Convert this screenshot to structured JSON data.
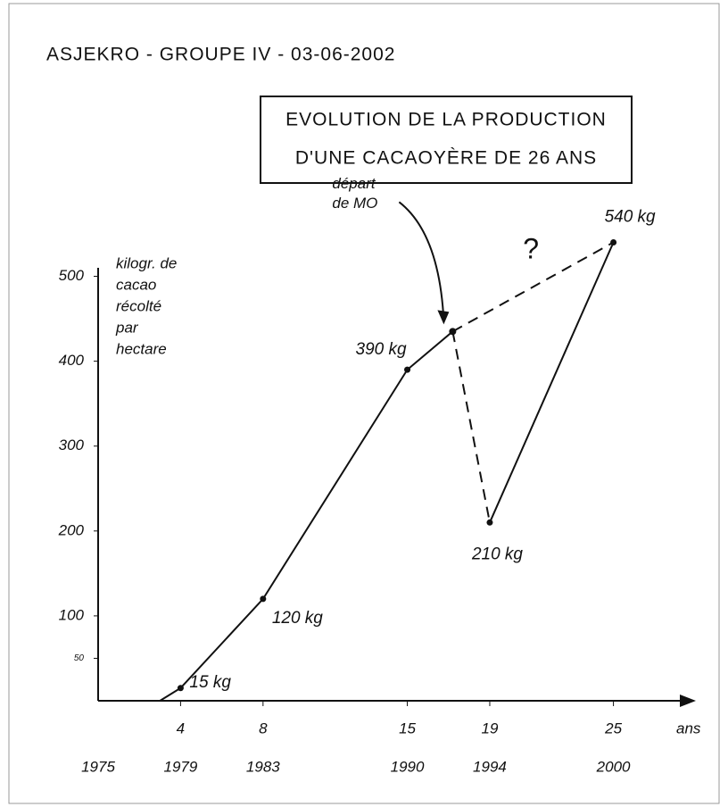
{
  "header": "ASJEKRO - GROUPE IV - 03-06-2002",
  "chart_data": {
    "type": "line",
    "title": [
      "EVOLUTION DE LA PRODUCTION",
      "D'UNE CACAOYÈRE DE 26 ANS"
    ],
    "y_label": [
      "kilogr. de",
      "cacao",
      "récolté",
      "par",
      "hectare"
    ],
    "x_label": "ans",
    "color": "#111",
    "xlim": [
      0,
      29
    ],
    "ylim": [
      0,
      510
    ],
    "yticks": [
      50,
      100,
      200,
      300,
      400,
      500
    ],
    "xticks": [
      4,
      8,
      15,
      19,
      25
    ],
    "year_ticks": [
      {
        "value": 0,
        "label": "1975"
      },
      {
        "value": 4,
        "label": "1979"
      },
      {
        "value": 8,
        "label": "1983"
      },
      {
        "value": 15,
        "label": "1990"
      },
      {
        "value": 19,
        "label": "1994"
      },
      {
        "value": 25,
        "label": "2000"
      }
    ],
    "series": [
      {
        "style": "solid",
        "x": [
          3,
          4,
          8,
          15,
          17.2
        ],
        "values": [
          0,
          15,
          120,
          390,
          435
        ]
      },
      {
        "style": "dashed",
        "x": [
          17.2,
          25
        ],
        "values": [
          435,
          540
        ]
      },
      {
        "style": "dashed",
        "x": [
          17.2,
          19
        ],
        "values": [
          435,
          210
        ]
      },
      {
        "style": "solid",
        "x": [
          19,
          25
        ],
        "values": [
          210,
          540
        ]
      }
    ],
    "points": [
      {
        "x": 4,
        "value": 15,
        "label": "15 kg"
      },
      {
        "x": 8,
        "value": 120,
        "label": "120 kg"
      },
      {
        "x": 15,
        "value": 390,
        "label": "390 kg"
      },
      {
        "x": 19,
        "value": 210,
        "label": "210 kg"
      },
      {
        "x": 25,
        "value": 540,
        "label": "540 kg"
      }
    ],
    "annotations": [
      {
        "text": [
          "départ",
          "de MO"
        ],
        "x": 17.2,
        "value": 435
      },
      {
        "text": [
          "?"
        ],
        "x": 21,
        "value": 530
      }
    ]
  }
}
